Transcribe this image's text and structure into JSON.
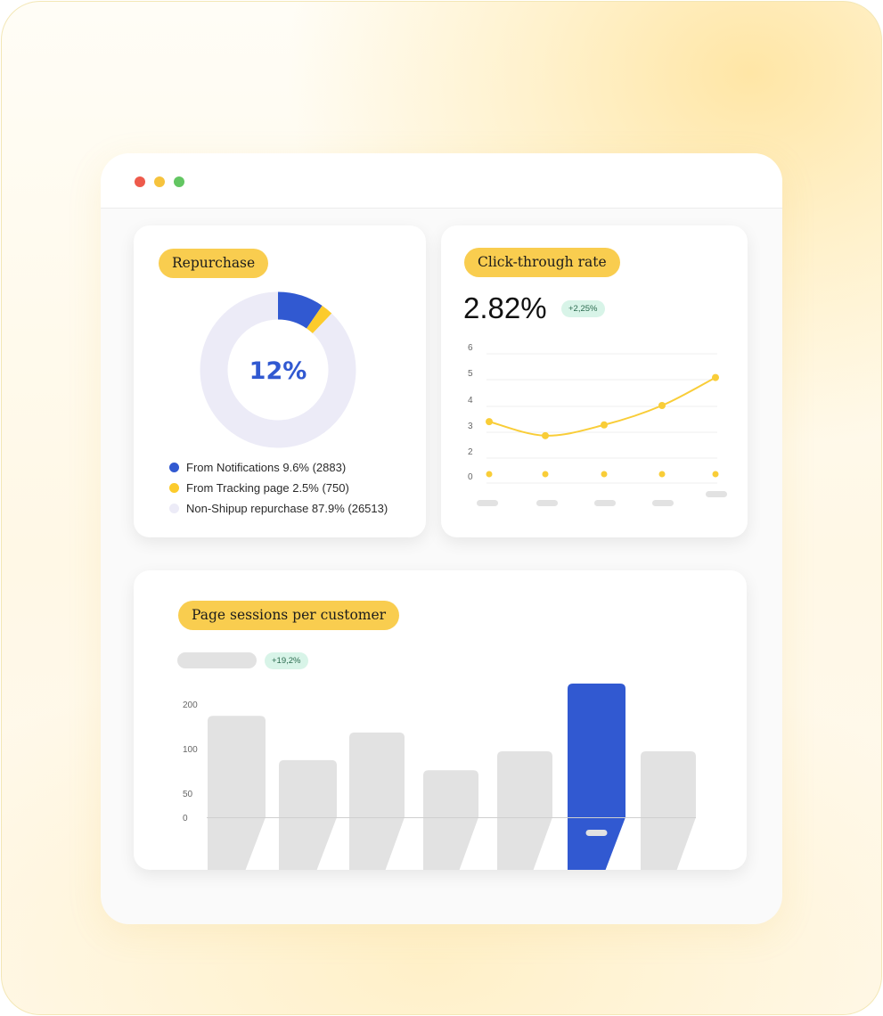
{
  "window": {
    "controls": [
      {
        "name": "close",
        "color": "#ee5a4b"
      },
      {
        "name": "minimize",
        "color": "#f6c33d"
      },
      {
        "name": "maximize",
        "color": "#63c662"
      }
    ]
  },
  "repurchase": {
    "title": "Repurchase",
    "center_value": "12%",
    "legend": [
      {
        "label": "From Notifications 9.6% (2883)",
        "color": "#3159d1"
      },
      {
        "label": "From Tracking page 2.5% (750)",
        "color": "#fccb2c"
      },
      {
        "label": "Non-Shipup repurchase 87.9% (26513)",
        "color": "#ecebf7"
      }
    ]
  },
  "ctr": {
    "title": "Click-through rate",
    "value": "2.82%",
    "change": "+2,25%"
  },
  "sessions": {
    "title": "Page sessions per customer",
    "change": "+19,2%"
  },
  "chart_data": [
    {
      "type": "pie",
      "title": "Repurchase",
      "center_label": "12%",
      "categories": [
        "From Notifications",
        "From Tracking page",
        "Non-Shipup repurchase"
      ],
      "values": [
        9.6,
        2.5,
        87.9
      ],
      "counts": [
        2883,
        750,
        26513
      ],
      "colors": [
        "#3159d1",
        "#fccb2c",
        "#ecebf7"
      ],
      "legend": "bottom"
    },
    {
      "type": "line",
      "title": "Click-through rate",
      "y_ticks": [
        "6",
        "5",
        "4",
        "3",
        "2",
        "0"
      ],
      "ylim": [
        0,
        6
      ],
      "x": [
        1,
        2,
        3,
        4,
        5
      ],
      "series": [
        {
          "values": [
            2.85,
            2.2,
            2.7,
            3.6,
            4.9
          ],
          "color": "#f9cd38"
        },
        {
          "values": [
            0,
            0,
            0,
            0,
            0
          ],
          "color": "#f9cd38"
        }
      ],
      "grid": true
    },
    {
      "type": "bar",
      "title": "Page sessions per customer",
      "y_ticks": [
        "200",
        "100",
        "50",
        "0"
      ],
      "values": [
        220,
        124,
        184,
        102,
        143,
        290,
        143
      ],
      "highlight_index": 5,
      "colors": {
        "default": "#e2e2e2",
        "highlight": "#3159d1"
      }
    }
  ]
}
